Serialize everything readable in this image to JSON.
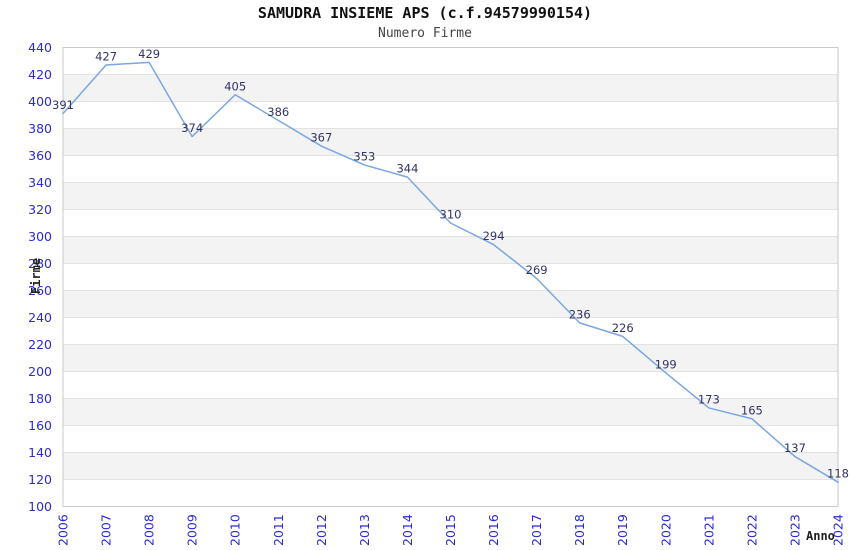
{
  "chart_data": {
    "type": "line",
    "title": "SAMUDRA INSIEME APS (c.f.94579990154)",
    "subtitle": "Numero Firme",
    "xlabel": "Anno",
    "ylabel": "Firme",
    "categories": [
      "2006",
      "2007",
      "2008",
      "2009",
      "2010",
      "2011",
      "2012",
      "2013",
      "2014",
      "2015",
      "2016",
      "2017",
      "2018",
      "2019",
      "2020",
      "2021",
      "2022",
      "2023",
      "2024"
    ],
    "series": [
      {
        "name": "Numero Firme",
        "values": [
          391,
          427,
          429,
          374,
          405,
          386,
          367,
          353,
          344,
          310,
          294,
          269,
          236,
          226,
          199,
          173,
          165,
          137,
          118
        ]
      }
    ],
    "ylim": [
      100,
      440
    ],
    "ytick_step": 20,
    "grid": "horizontal-bands",
    "legend_position": "none",
    "point_labels_visible": true,
    "colors": {
      "line": "#7aa7e0",
      "tick_label": "#2b2bd2",
      "point_label": "#333366",
      "band_gray": "#f3f3f3",
      "band_white": "#ffffff",
      "gridline": "#e2e2e2",
      "plot_border": "#c9c9c9",
      "title": "#111111",
      "subtitle": "#454545",
      "axis_title": "#222222"
    }
  }
}
